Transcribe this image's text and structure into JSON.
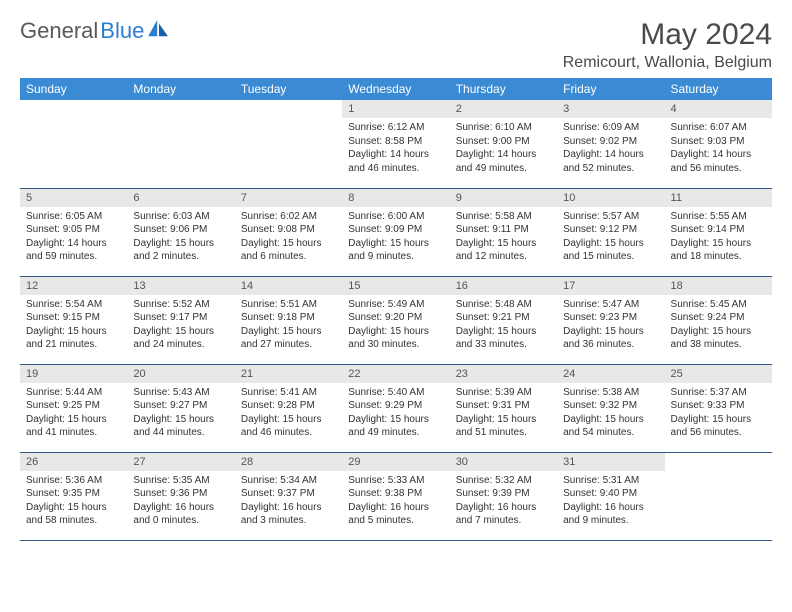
{
  "brand": {
    "part1": "General",
    "part2": "Blue"
  },
  "title": "May 2024",
  "location": "Remicourt, Wallonia, Belgium",
  "colors": {
    "header_bg": "#3b8bd4",
    "header_text": "#ffffff",
    "daynum_bg": "#e8e8e8",
    "border": "#2a5a8a",
    "logo_gray": "#5a5a5a",
    "logo_blue": "#2e7cd1"
  },
  "weekdays": [
    "Sunday",
    "Monday",
    "Tuesday",
    "Wednesday",
    "Thursday",
    "Friday",
    "Saturday"
  ],
  "weeks": [
    [
      null,
      null,
      null,
      {
        "n": "1",
        "sr": "6:12 AM",
        "ss": "8:58 PM",
        "dl": "14 hours and 46 minutes."
      },
      {
        "n": "2",
        "sr": "6:10 AM",
        "ss": "9:00 PM",
        "dl": "14 hours and 49 minutes."
      },
      {
        "n": "3",
        "sr": "6:09 AM",
        "ss": "9:02 PM",
        "dl": "14 hours and 52 minutes."
      },
      {
        "n": "4",
        "sr": "6:07 AM",
        "ss": "9:03 PM",
        "dl": "14 hours and 56 minutes."
      }
    ],
    [
      {
        "n": "5",
        "sr": "6:05 AM",
        "ss": "9:05 PM",
        "dl": "14 hours and 59 minutes."
      },
      {
        "n": "6",
        "sr": "6:03 AM",
        "ss": "9:06 PM",
        "dl": "15 hours and 2 minutes."
      },
      {
        "n": "7",
        "sr": "6:02 AM",
        "ss": "9:08 PM",
        "dl": "15 hours and 6 minutes."
      },
      {
        "n": "8",
        "sr": "6:00 AM",
        "ss": "9:09 PM",
        "dl": "15 hours and 9 minutes."
      },
      {
        "n": "9",
        "sr": "5:58 AM",
        "ss": "9:11 PM",
        "dl": "15 hours and 12 minutes."
      },
      {
        "n": "10",
        "sr": "5:57 AM",
        "ss": "9:12 PM",
        "dl": "15 hours and 15 minutes."
      },
      {
        "n": "11",
        "sr": "5:55 AM",
        "ss": "9:14 PM",
        "dl": "15 hours and 18 minutes."
      }
    ],
    [
      {
        "n": "12",
        "sr": "5:54 AM",
        "ss": "9:15 PM",
        "dl": "15 hours and 21 minutes."
      },
      {
        "n": "13",
        "sr": "5:52 AM",
        "ss": "9:17 PM",
        "dl": "15 hours and 24 minutes."
      },
      {
        "n": "14",
        "sr": "5:51 AM",
        "ss": "9:18 PM",
        "dl": "15 hours and 27 minutes."
      },
      {
        "n": "15",
        "sr": "5:49 AM",
        "ss": "9:20 PM",
        "dl": "15 hours and 30 minutes."
      },
      {
        "n": "16",
        "sr": "5:48 AM",
        "ss": "9:21 PM",
        "dl": "15 hours and 33 minutes."
      },
      {
        "n": "17",
        "sr": "5:47 AM",
        "ss": "9:23 PM",
        "dl": "15 hours and 36 minutes."
      },
      {
        "n": "18",
        "sr": "5:45 AM",
        "ss": "9:24 PM",
        "dl": "15 hours and 38 minutes."
      }
    ],
    [
      {
        "n": "19",
        "sr": "5:44 AM",
        "ss": "9:25 PM",
        "dl": "15 hours and 41 minutes."
      },
      {
        "n": "20",
        "sr": "5:43 AM",
        "ss": "9:27 PM",
        "dl": "15 hours and 44 minutes."
      },
      {
        "n": "21",
        "sr": "5:41 AM",
        "ss": "9:28 PM",
        "dl": "15 hours and 46 minutes."
      },
      {
        "n": "22",
        "sr": "5:40 AM",
        "ss": "9:29 PM",
        "dl": "15 hours and 49 minutes."
      },
      {
        "n": "23",
        "sr": "5:39 AM",
        "ss": "9:31 PM",
        "dl": "15 hours and 51 minutes."
      },
      {
        "n": "24",
        "sr": "5:38 AM",
        "ss": "9:32 PM",
        "dl": "15 hours and 54 minutes."
      },
      {
        "n": "25",
        "sr": "5:37 AM",
        "ss": "9:33 PM",
        "dl": "15 hours and 56 minutes."
      }
    ],
    [
      {
        "n": "26",
        "sr": "5:36 AM",
        "ss": "9:35 PM",
        "dl": "15 hours and 58 minutes."
      },
      {
        "n": "27",
        "sr": "5:35 AM",
        "ss": "9:36 PM",
        "dl": "16 hours and 0 minutes."
      },
      {
        "n": "28",
        "sr": "5:34 AM",
        "ss": "9:37 PM",
        "dl": "16 hours and 3 minutes."
      },
      {
        "n": "29",
        "sr": "5:33 AM",
        "ss": "9:38 PM",
        "dl": "16 hours and 5 minutes."
      },
      {
        "n": "30",
        "sr": "5:32 AM",
        "ss": "9:39 PM",
        "dl": "16 hours and 7 minutes."
      },
      {
        "n": "31",
        "sr": "5:31 AM",
        "ss": "9:40 PM",
        "dl": "16 hours and 9 minutes."
      },
      null
    ]
  ]
}
